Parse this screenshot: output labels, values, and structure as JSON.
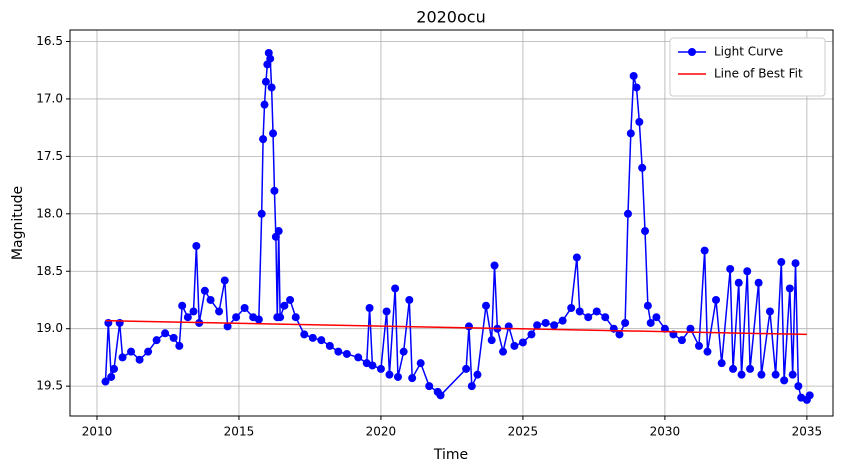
{
  "chart_data": {
    "type": "line",
    "title": "2020ocu",
    "x_label": "Time",
    "y_label": "Magnitude",
    "xlim": [
      2009.05,
      2035.92
    ],
    "ylim": [
      19.76,
      16.4
    ],
    "xticks": [
      2010,
      2015,
      2020,
      2025,
      2030,
      2035
    ],
    "yticks": [
      {
        "value": 16.5,
        "label": "16.5"
      },
      {
        "value": 17,
        "label": "17.0"
      },
      {
        "value": 17.5,
        "label": "17.5"
      },
      {
        "value": 18,
        "label": "18.0"
      },
      {
        "value": 18.5,
        "label": "18.5"
      },
      {
        "value": 19,
        "label": "19.0"
      },
      {
        "value": 19.5,
        "label": "19.5"
      }
    ],
    "grid": true,
    "legend": "upper right",
    "series": [
      {
        "name": "Light Curve",
        "color": "#0000ff",
        "markers": true,
        "x": [
          2010.3,
          2010.4,
          2010.5,
          2010.6,
          2010.8,
          2010.9,
          2011.2,
          2011.5,
          2011.8,
          2012.1,
          2012.4,
          2012.7,
          2012.9,
          2013.0,
          2013.2,
          2013.4,
          2013.5,
          2013.6,
          2013.8,
          2014.0,
          2014.3,
          2014.5,
          2014.6,
          2014.9,
          2015.2,
          2015.5,
          2015.7,
          2015.8,
          2015.85,
          2015.9,
          2015.95,
          2016.0,
          2016.05,
          2016.1,
          2016.15,
          2016.2,
          2016.25,
          2016.3,
          2016.35,
          2016.4,
          2016.45,
          2016.6,
          2016.8,
          2017.0,
          2017.3,
          2017.6,
          2017.9,
          2018.2,
          2018.5,
          2018.8,
          2019.2,
          2019.5,
          2019.6,
          2019.7,
          2020.0,
          2020.2,
          2020.3,
          2020.5,
          2020.6,
          2020.8,
          2021.0,
          2021.1,
          2021.4,
          2021.7,
          2022.0,
          2022.1,
          2023.0,
          2023.1,
          2023.2,
          2023.4,
          2023.7,
          2023.9,
          2024.0,
          2024.1,
          2024.3,
          2024.5,
          2024.7,
          2025.0,
          2025.3,
          2025.5,
          2025.8,
          2026.1,
          2026.4,
          2026.7,
          2026.9,
          2027.0,
          2027.3,
          2027.6,
          2027.9,
          2028.2,
          2028.4,
          2028.6,
          2028.7,
          2028.8,
          2028.9,
          2029.0,
          2029.1,
          2029.2,
          2029.3,
          2029.4,
          2029.5,
          2029.7,
          2030.0,
          2030.3,
          2030.6,
          2030.9,
          2031.2,
          2031.4,
          2031.5,
          2031.8,
          2032.0,
          2032.3,
          2032.4,
          2032.6,
          2032.7,
          2032.9,
          2033.0,
          2033.3,
          2033.4,
          2033.7,
          2033.9,
          2034.1,
          2034.2,
          2034.4,
          2034.5,
          2034.6,
          2034.7,
          2034.8,
          2035.0,
          2035.1
        ],
        "values": [
          19.46,
          18.95,
          19.42,
          19.35,
          18.95,
          19.25,
          19.2,
          19.27,
          19.2,
          19.1,
          19.04,
          19.08,
          19.15,
          18.8,
          18.9,
          18.85,
          18.28,
          18.95,
          18.67,
          18.75,
          18.85,
          18.58,
          18.98,
          18.9,
          18.82,
          18.9,
          18.92,
          18.0,
          17.35,
          17.05,
          16.85,
          16.7,
          16.6,
          16.65,
          16.9,
          17.3,
          17.8,
          18.2,
          18.9,
          18.15,
          18.9,
          18.8,
          18.75,
          18.9,
          19.05,
          19.08,
          19.1,
          19.15,
          19.2,
          19.22,
          19.25,
          19.3,
          18.82,
          19.32,
          19.35,
          18.85,
          19.4,
          18.65,
          19.42,
          19.2,
          18.75,
          19.43,
          19.3,
          19.5,
          19.55,
          19.58,
          19.35,
          18.98,
          19.5,
          19.4,
          18.8,
          19.1,
          18.45,
          19.0,
          19.2,
          18.98,
          19.15,
          19.12,
          19.05,
          18.97,
          18.95,
          18.97,
          18.93,
          18.82,
          18.38,
          18.85,
          18.9,
          18.85,
          18.9,
          19.0,
          19.05,
          18.95,
          18.0,
          17.3,
          16.8,
          16.9,
          17.2,
          17.6,
          18.15,
          18.8,
          18.95,
          18.9,
          19.0,
          19.05,
          19.1,
          19.0,
          19.15,
          18.32,
          19.2,
          18.75,
          19.3,
          18.48,
          19.35,
          18.6,
          19.4,
          18.5,
          19.35,
          18.6,
          19.4,
          18.85,
          19.4,
          18.42,
          19.45,
          18.65,
          19.4,
          18.43,
          19.5,
          19.6,
          19.62,
          19.58
        ]
      },
      {
        "name": "Line of Best Fit",
        "color": "#ff0000",
        "markers": false,
        "x": [
          2010.3,
          2035.0
        ],
        "values": [
          18.93,
          19.05
        ]
      }
    ]
  }
}
